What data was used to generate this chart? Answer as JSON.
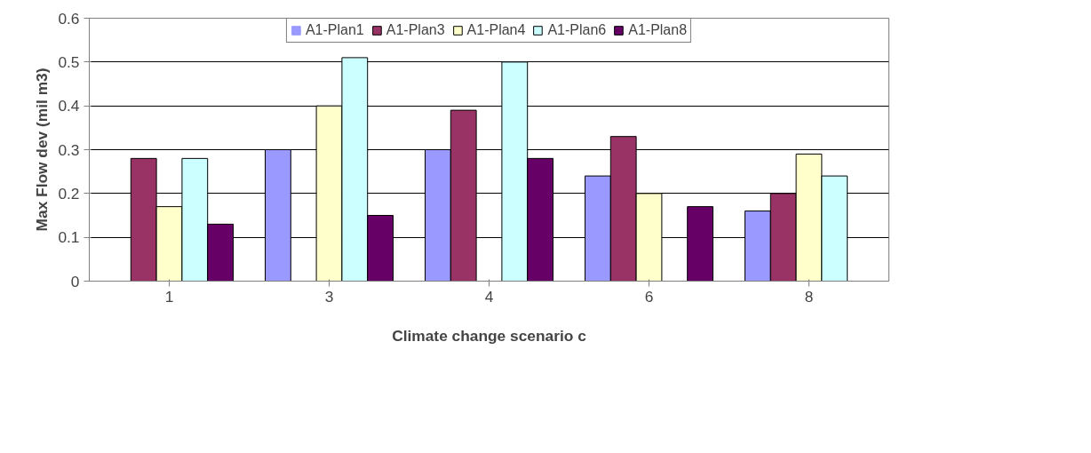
{
  "chart_data": {
    "type": "bar",
    "xlabel": "Climate change scenario c",
    "ylabel": "Max Flow dev (mil m3)",
    "categories": [
      "1",
      "3",
      "4",
      "6",
      "8"
    ],
    "series": [
      {
        "name": "A1-Plan1",
        "color": "#9999ff",
        "values": [
          0,
          0.3,
          0.3,
          0.24,
          0.16
        ]
      },
      {
        "name": "A1-Plan3",
        "color": "#993366",
        "values": [
          0.28,
          0,
          0.39,
          0.33,
          0.2
        ]
      },
      {
        "name": "A1-Plan4",
        "color": "#ffffcc",
        "values": [
          0.17,
          0.4,
          0,
          0.2,
          0.29
        ]
      },
      {
        "name": "A1-Plan6",
        "color": "#ccffff",
        "values": [
          0.28,
          0.51,
          0.5,
          0,
          0.24
        ]
      },
      {
        "name": "A1-Plan8",
        "color": "#660066",
        "values": [
          0.13,
          0.15,
          0.28,
          0.17,
          0
        ]
      }
    ],
    "ylim": [
      0,
      0.6
    ],
    "yticks": [
      0,
      0.1,
      0.2,
      0.3,
      0.4,
      0.5,
      0.6
    ],
    "grid": "y",
    "legend": "top"
  }
}
